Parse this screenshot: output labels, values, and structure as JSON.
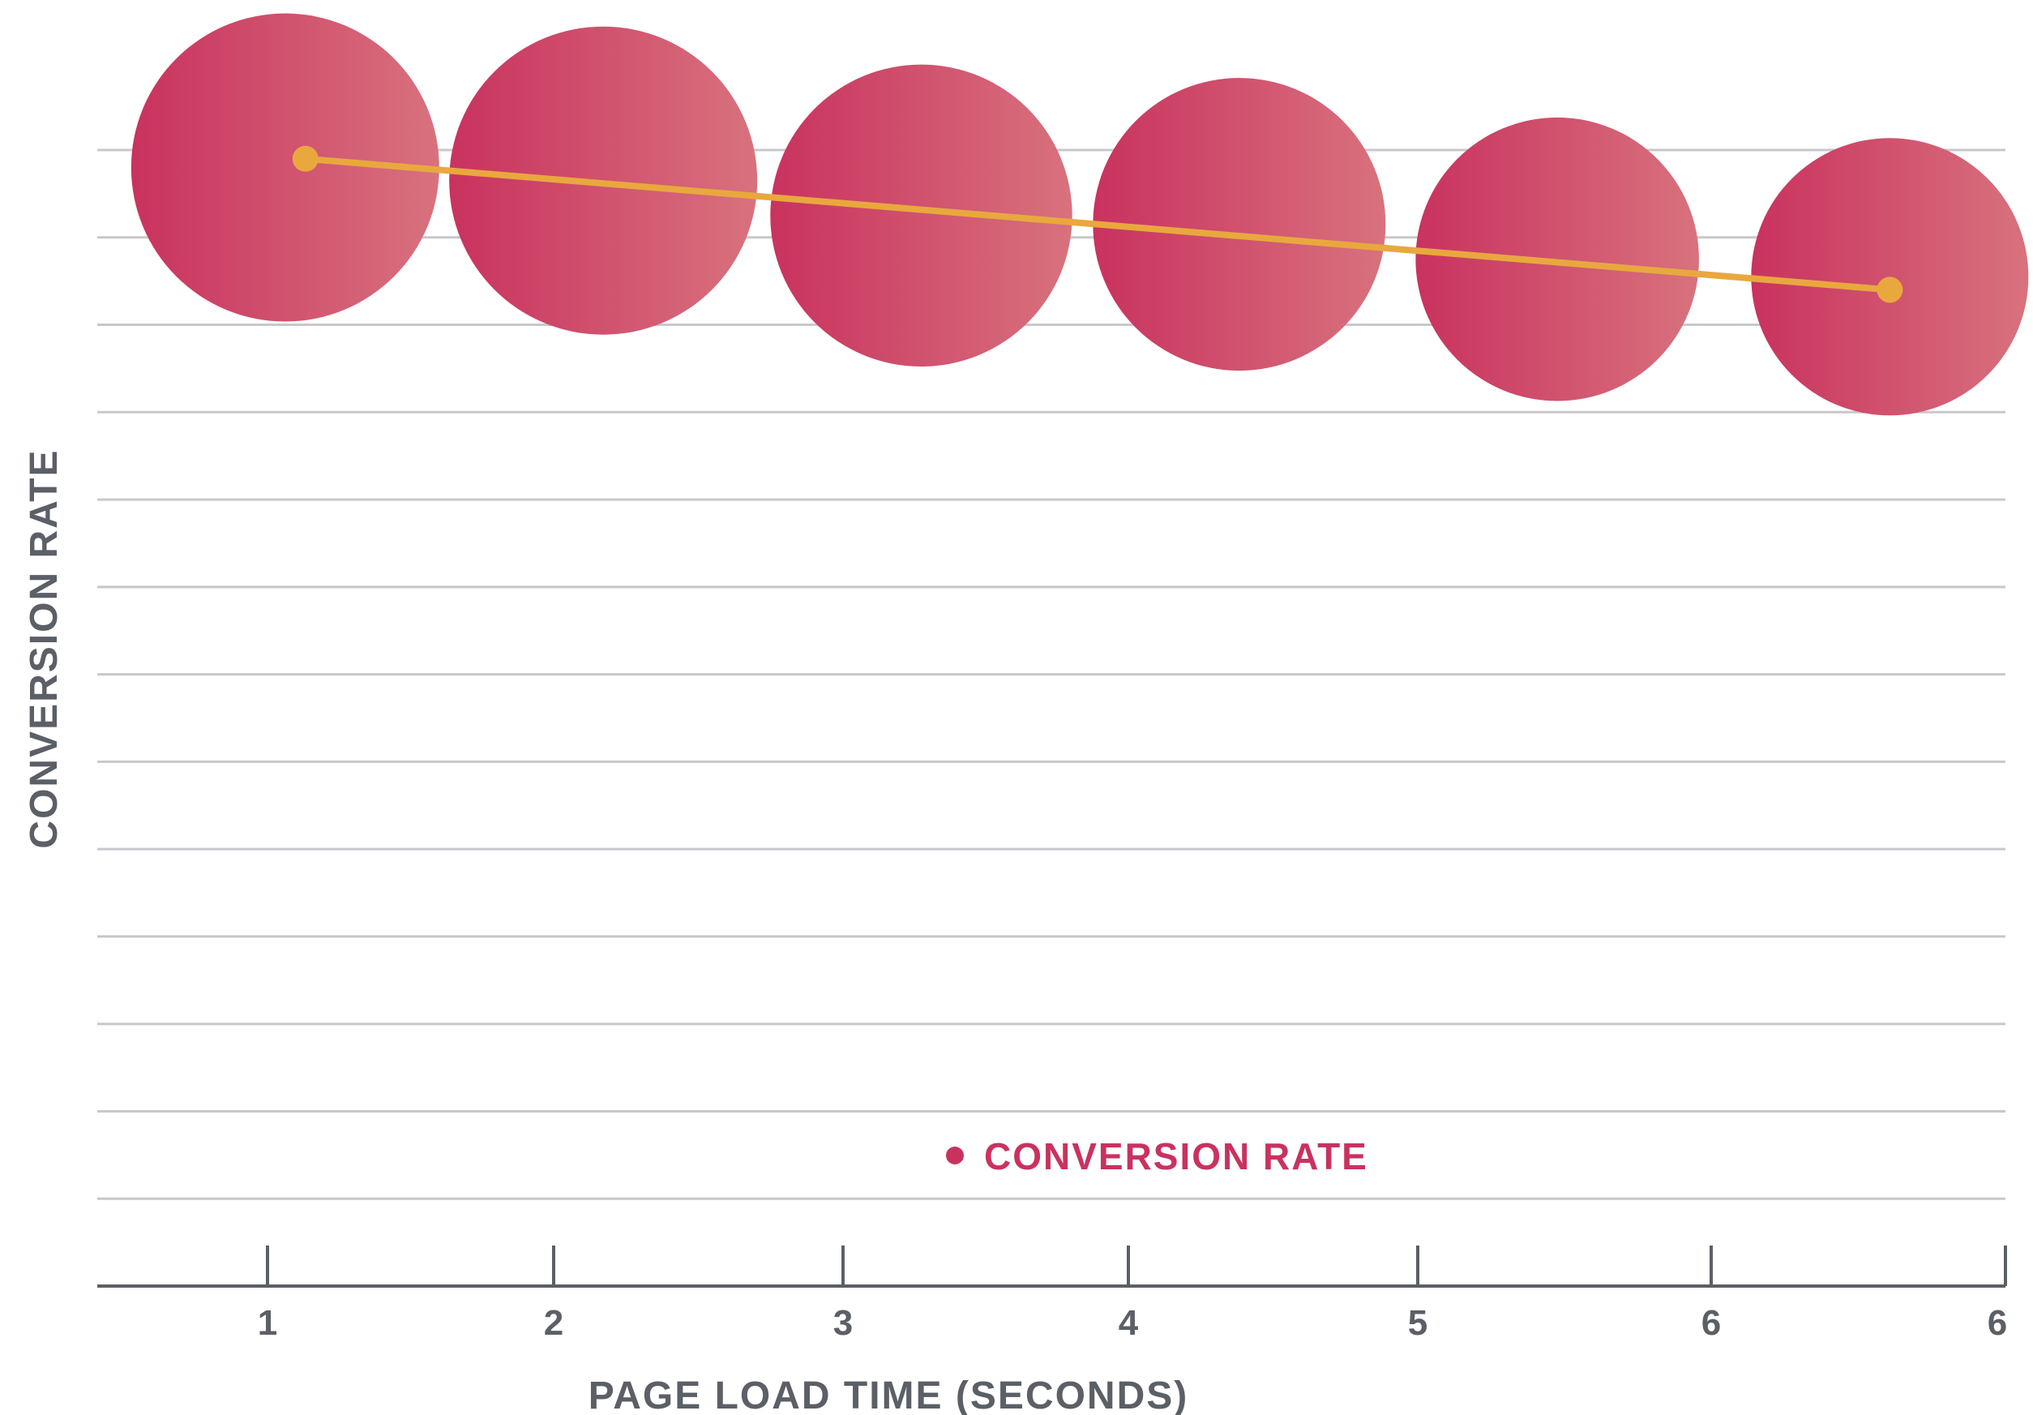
{
  "chart_data": {
    "type": "scatter",
    "xlabel": "PAGE LOAD TIME (SECONDS)",
    "ylabel": "CONVERSION RATE",
    "x_ticks": [
      "1",
      "2",
      "3",
      "4",
      "5",
      "6",
      "6"
    ],
    "grid": true,
    "legend": {
      "position": "bottom-center",
      "entries": [
        {
          "label": "CONVERSION RATE",
          "color": "#c9325f"
        }
      ]
    },
    "series": [
      {
        "name": "CONVERSION RATE",
        "marker": "bubble",
        "x": [
          1.05,
          2.15,
          3.25,
          4.35,
          5.45,
          6.6
        ],
        "y": [
          12.8,
          12.65,
          12.25,
          12.15,
          11.75,
          11.55
        ],
        "size": [
          1.0,
          1.0,
          0.98,
          0.95,
          0.92,
          0.9
        ]
      }
    ],
    "trendline": {
      "x": [
        1.12,
        6.6
      ],
      "y": [
        12.9,
        11.4
      ],
      "color": "#e8a83e"
    },
    "x_range": [
      0.4,
      7.0
    ],
    "y_range": [
      0,
      13
    ],
    "colors": {
      "bubble_dark": "#c9325f",
      "bubble_light": "#d8727d",
      "trend": "#e8a83e",
      "grid": "#c8c8cc",
      "axis": "#5b5f66",
      "legend_text": "#c9325f"
    }
  }
}
